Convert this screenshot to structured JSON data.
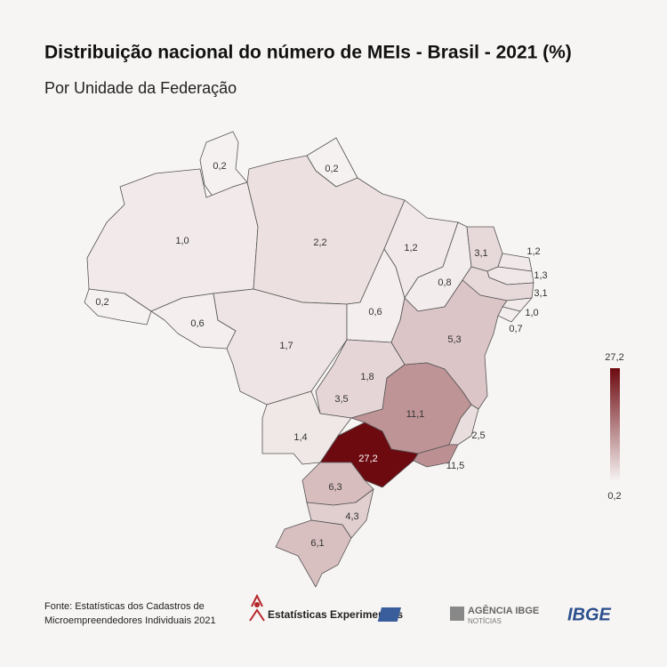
{
  "chart_data": {
    "type": "choropleth",
    "title": "Distribuição nacional do número de MEIs - Brasil - 2021 (%)",
    "subtitle": "Por Unidade da Federação",
    "values": [
      0.2,
      0.2,
      1.0,
      2.2,
      0.2,
      0.6,
      1.7,
      0.6,
      1.2,
      0.8,
      3.1,
      1.2,
      1.3,
      3.1,
      1.0,
      0.7,
      5.3,
      1.8,
      3.5,
      11.1,
      2.5,
      11.5,
      27.2,
      1.4,
      6.3,
      4.3,
      6.1
    ],
    "value_labels": [
      "0,2",
      "0,2",
      "1,0",
      "2,2",
      "0,2",
      "0,6",
      "1,7",
      "0,6",
      "1,2",
      "0,8",
      "3,1",
      "1,2",
      "1,3",
      "3,1",
      "1,0",
      "0,7",
      "5,3",
      "1,8",
      "3,5",
      "11,1",
      "2,5",
      "11,5",
      "27,2",
      "1,4",
      "6,3",
      "4,3",
      "6,1"
    ],
    "clim": [
      0.2,
      27.2
    ],
    "cticks": [
      {
        "value": 0.2,
        "label": "0,2"
      },
      {
        "value": 27.2,
        "label": "27,2"
      }
    ],
    "color_low": "#f6f1f1",
    "color_high": "#6c0a10"
  },
  "footer": {
    "source": [
      "Fonte: Estatísticas dos Cadastros de",
      "Microempreendedores Individuais 2021"
    ],
    "logo_experimental": "Estatísticas Experimentais",
    "logo_agency": "AGÊNCIA IBGE",
    "logo_agency_sub": "NOTÍCIAS",
    "logo_ibge": "IBGE"
  }
}
